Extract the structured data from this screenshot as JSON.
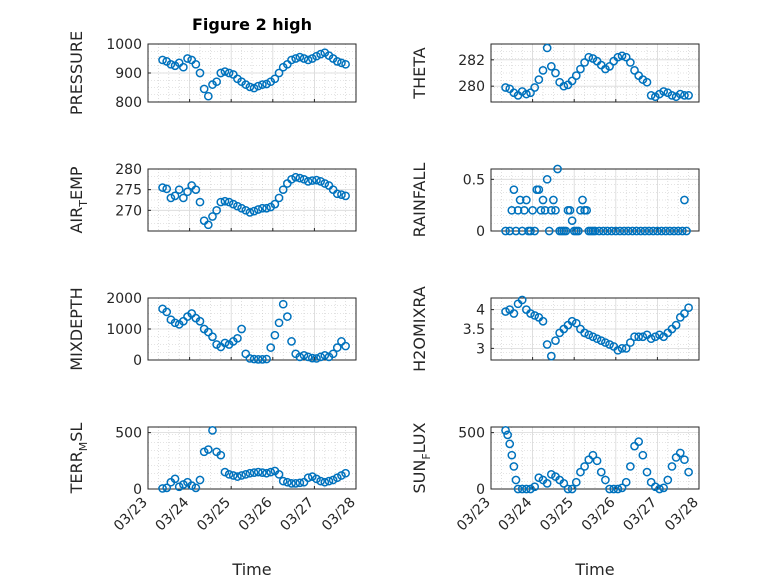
{
  "colors": {
    "marker": "#0072bd",
    "axis": "#262626",
    "grid": "#c8c8c8",
    "background": "#ffffff"
  },
  "figure_title": "Figure 2 high",
  "x_axis": {
    "label": "Time",
    "ticks": [
      "03/23",
      "03/24",
      "03/25",
      "03/26",
      "03/27",
      "03/28"
    ],
    "range_days": [
      0,
      5
    ],
    "start": "03/23"
  },
  "panels": [
    {
      "id": "pressure",
      "ylabel": "PRESSURE",
      "ylim": [
        800,
        1000
      ],
      "yticks": [
        800,
        900,
        1000
      ],
      "title": "Figure 2 high"
    },
    {
      "id": "theta",
      "ylabel": "THETA",
      "ylim": [
        278.8,
        283.2
      ],
      "yticks": [
        280,
        282
      ]
    },
    {
      "id": "airtemp",
      "ylabel_parts": [
        "AIR",
        "T",
        "EMP"
      ],
      "ylim": [
        265,
        280
      ],
      "yticks": [
        270,
        275,
        280
      ]
    },
    {
      "id": "rainfall",
      "ylabel": "RAINFALL",
      "ylim": [
        0,
        0.6
      ],
      "yticks": [
        0,
        0.5
      ]
    },
    {
      "id": "mixdepth",
      "ylabel": "MIXDEPTH",
      "ylim": [
        0,
        2000
      ],
      "yticks": [
        0,
        1000,
        2000
      ]
    },
    {
      "id": "h2omixra",
      "ylabel": "H2OMIXRA",
      "ylim": [
        2.7,
        4.3
      ],
      "yticks": [
        3,
        3.5,
        4
      ]
    },
    {
      "id": "terrmsl",
      "ylabel_parts": [
        "TERR",
        "M",
        "SL"
      ],
      "ylim": [
        0,
        550
      ],
      "yticks": [
        0,
        500
      ]
    },
    {
      "id": "sunflux",
      "ylabel_parts": [
        "SUN",
        "F",
        "LUX"
      ],
      "ylim": [
        0,
        550
      ],
      "yticks": [
        0,
        500
      ]
    }
  ],
  "chart_data": [
    {
      "type": "scatter",
      "title": "Figure 2 high",
      "xlabel": "",
      "ylabel": "PRESSURE",
      "ylim": [
        800,
        1000
      ],
      "grid": true,
      "x": [
        0.35,
        0.45,
        0.55,
        0.65,
        0.75,
        0.85,
        0.95,
        1.05,
        1.15,
        1.25,
        1.35,
        1.45,
        1.55,
        1.65,
        1.75,
        1.85,
        1.95,
        2.05,
        2.15,
        2.25,
        2.35,
        2.45,
        2.55,
        2.65,
        2.75,
        2.85,
        2.95,
        3.05,
        3.15,
        3.25,
        3.35,
        3.45,
        3.55,
        3.65,
        3.75,
        3.85,
        3.95,
        4.05,
        4.15,
        4.25,
        4.35,
        4.45,
        4.55,
        4.65,
        4.75
      ],
      "y": [
        945,
        940,
        930,
        925,
        935,
        920,
        950,
        945,
        930,
        900,
        845,
        820,
        860,
        870,
        900,
        905,
        900,
        895,
        880,
        870,
        860,
        852,
        848,
        855,
        860,
        862,
        870,
        880,
        900,
        920,
        930,
        945,
        950,
        955,
        950,
        945,
        950,
        958,
        965,
        970,
        960,
        950,
        940,
        935,
        930
      ]
    },
    {
      "type": "scatter",
      "xlabel": "",
      "ylabel": "THETA",
      "ylim": [
        278.8,
        283.2
      ],
      "grid": true,
      "x": [
        0.35,
        0.45,
        0.55,
        0.65,
        0.75,
        0.85,
        0.95,
        1.05,
        1.15,
        1.25,
        1.35,
        1.45,
        1.55,
        1.65,
        1.75,
        1.85,
        1.95,
        2.05,
        2.15,
        2.25,
        2.35,
        2.45,
        2.55,
        2.65,
        2.75,
        2.85,
        2.95,
        3.05,
        3.15,
        3.25,
        3.35,
        3.45,
        3.55,
        3.65,
        3.75,
        3.85,
        3.95,
        4.05,
        4.15,
        4.25,
        4.35,
        4.45,
        4.55,
        4.65,
        4.75
      ],
      "y": [
        279.9,
        279.8,
        279.5,
        279.3,
        279.6,
        279.4,
        279.5,
        279.9,
        280.5,
        281.2,
        282.9,
        281.5,
        281.0,
        280.3,
        280.0,
        280.1,
        280.4,
        280.8,
        281.3,
        281.8,
        282.2,
        282.1,
        281.9,
        281.6,
        281.3,
        281.5,
        281.9,
        282.2,
        282.3,
        282.2,
        281.8,
        281.2,
        280.8,
        280.5,
        280.3,
        279.3,
        279.2,
        279.4,
        279.6,
        279.5,
        279.3,
        279.2,
        279.4,
        279.3,
        279.3
      ]
    },
    {
      "type": "scatter",
      "xlabel": "",
      "ylabel": "AIR_TEMP",
      "ylim": [
        265,
        280
      ],
      "grid": true,
      "x": [
        0.35,
        0.45,
        0.55,
        0.65,
        0.75,
        0.85,
        0.95,
        1.05,
        1.15,
        1.25,
        1.35,
        1.45,
        1.55,
        1.65,
        1.75,
        1.85,
        1.95,
        2.05,
        2.15,
        2.25,
        2.35,
        2.45,
        2.55,
        2.65,
        2.75,
        2.85,
        2.95,
        3.05,
        3.15,
        3.25,
        3.35,
        3.45,
        3.55,
        3.65,
        3.75,
        3.85,
        3.95,
        4.05,
        4.15,
        4.25,
        4.35,
        4.45,
        4.55,
        4.65,
        4.75
      ],
      "y": [
        275.5,
        275.2,
        273,
        273.5,
        275,
        273,
        274.5,
        276,
        275,
        272,
        267.5,
        266.5,
        268.5,
        270,
        272,
        272.2,
        272,
        271.5,
        271,
        270.5,
        270,
        269.5,
        269.8,
        270.2,
        270.5,
        270.5,
        270.8,
        271.5,
        273,
        275,
        276.5,
        277.5,
        278,
        277.8,
        277.5,
        277,
        277.2,
        277.3,
        277,
        276.5,
        276,
        275,
        274,
        273.8,
        273.5
      ]
    },
    {
      "type": "scatter",
      "xlabel": "",
      "ylabel": "RAINFALL",
      "ylim": [
        0,
        0.6
      ],
      "grid": true,
      "x": [
        0.35,
        0.45,
        0.5,
        0.55,
        0.6,
        0.65,
        0.7,
        0.75,
        0.8,
        0.85,
        0.9,
        0.95,
        1.0,
        1.05,
        1.1,
        1.15,
        1.2,
        1.25,
        1.3,
        1.35,
        1.4,
        1.45,
        1.5,
        1.55,
        1.6,
        1.65,
        1.7,
        1.75,
        1.8,
        1.85,
        1.9,
        1.95,
        2.0,
        2.05,
        2.1,
        2.15,
        2.2,
        2.25,
        2.3,
        2.35,
        2.4,
        2.45,
        2.5,
        2.6,
        2.7,
        2.8,
        2.9,
        3.0,
        3.1,
        3.2,
        3.3,
        3.4,
        3.5,
        3.6,
        3.7,
        3.8,
        3.9,
        4.0,
        4.1,
        4.2,
        4.3,
        4.4,
        4.5,
        4.6,
        4.65,
        4.7
      ],
      "y": [
        0,
        0,
        0.2,
        0.4,
        0,
        0.2,
        0.3,
        0,
        0.2,
        0.3,
        0,
        0,
        0.2,
        0,
        0.4,
        0.4,
        0.2,
        0.3,
        0.2,
        0.5,
        0,
        0.2,
        0.3,
        0.2,
        0.6,
        0,
        0,
        0,
        0,
        0.2,
        0.2,
        0.1,
        0,
        0,
        0,
        0.2,
        0.3,
        0.2,
        0.2,
        0,
        0,
        0,
        0,
        0,
        0,
        0,
        0,
        0,
        0,
        0,
        0,
        0,
        0,
        0,
        0,
        0,
        0,
        0,
        0,
        0,
        0,
        0,
        0,
        0,
        0.3,
        0
      ]
    },
    {
      "type": "scatter",
      "xlabel": "",
      "ylabel": "MIXDEPTH",
      "ylim": [
        0,
        2000
      ],
      "grid": true,
      "x": [
        0.35,
        0.45,
        0.55,
        0.65,
        0.75,
        0.85,
        0.95,
        1.05,
        1.15,
        1.25,
        1.35,
        1.45,
        1.55,
        1.65,
        1.75,
        1.85,
        1.95,
        2.05,
        2.15,
        2.25,
        2.35,
        2.45,
        2.55,
        2.65,
        2.75,
        2.85,
        2.95,
        3.05,
        3.15,
        3.25,
        3.35,
        3.45,
        3.55,
        3.65,
        3.75,
        3.85,
        3.95,
        4.05,
        4.15,
        4.25,
        4.35,
        4.45,
        4.55,
        4.65,
        4.75
      ],
      "y": [
        1650,
        1550,
        1300,
        1200,
        1150,
        1250,
        1400,
        1500,
        1350,
        1250,
        1000,
        900,
        750,
        500,
        420,
        550,
        500,
        600,
        700,
        1000,
        200,
        50,
        30,
        20,
        20,
        30,
        400,
        800,
        1200,
        1800,
        1400,
        600,
        200,
        100,
        150,
        100,
        60,
        50,
        100,
        150,
        100,
        200,
        400,
        600,
        450
      ]
    },
    {
      "type": "scatter",
      "xlabel": "",
      "ylabel": "H2OMIXRA",
      "ylim": [
        2.7,
        4.3
      ],
      "grid": true,
      "x": [
        0.35,
        0.45,
        0.55,
        0.65,
        0.75,
        0.85,
        0.95,
        1.05,
        1.15,
        1.25,
        1.35,
        1.45,
        1.55,
        1.65,
        1.75,
        1.85,
        1.95,
        2.05,
        2.15,
        2.25,
        2.35,
        2.45,
        2.55,
        2.65,
        2.75,
        2.85,
        2.95,
        3.05,
        3.15,
        3.25,
        3.35,
        3.45,
        3.55,
        3.65,
        3.75,
        3.85,
        3.95,
        4.05,
        4.15,
        4.25,
        4.35,
        4.45,
        4.55,
        4.65,
        4.75
      ],
      "y": [
        3.95,
        4.0,
        3.9,
        4.15,
        4.25,
        4.0,
        3.9,
        3.85,
        3.8,
        3.7,
        3.1,
        2.8,
        3.2,
        3.4,
        3.5,
        3.6,
        3.7,
        3.65,
        3.5,
        3.4,
        3.35,
        3.3,
        3.25,
        3.2,
        3.15,
        3.1,
        3.05,
        2.95,
        3.0,
        3.0,
        3.15,
        3.3,
        3.3,
        3.3,
        3.35,
        3.25,
        3.3,
        3.35,
        3.3,
        3.4,
        3.5,
        3.6,
        3.8,
        3.9,
        4.05
      ]
    },
    {
      "type": "scatter",
      "xlabel": "Time",
      "ylabel": "TERR_MSL",
      "ylim": [
        0,
        550
      ],
      "grid": true,
      "x": [
        0.35,
        0.45,
        0.55,
        0.65,
        0.75,
        0.85,
        0.95,
        1.05,
        1.15,
        1.25,
        1.35,
        1.45,
        1.55,
        1.65,
        1.75,
        1.85,
        1.95,
        2.05,
        2.15,
        2.25,
        2.35,
        2.45,
        2.55,
        2.65,
        2.75,
        2.85,
        2.95,
        3.05,
        3.15,
        3.25,
        3.35,
        3.45,
        3.55,
        3.65,
        3.75,
        3.85,
        3.95,
        4.05,
        4.15,
        4.25,
        4.35,
        4.45,
        4.55,
        4.65,
        4.75
      ],
      "y": [
        5,
        10,
        60,
        90,
        20,
        40,
        60,
        30,
        10,
        80,
        330,
        350,
        520,
        330,
        300,
        150,
        130,
        120,
        110,
        120,
        130,
        140,
        145,
        150,
        145,
        140,
        150,
        160,
        130,
        70,
        60,
        50,
        50,
        55,
        60,
        100,
        110,
        90,
        70,
        60,
        70,
        80,
        100,
        120,
        140
      ]
    },
    {
      "type": "scatter",
      "xlabel": "Time",
      "ylabel": "SUN_FLUX",
      "ylim": [
        0,
        550
      ],
      "grid": true,
      "x": [
        0.35,
        0.4,
        0.45,
        0.5,
        0.55,
        0.6,
        0.65,
        0.75,
        0.85,
        0.95,
        1.05,
        1.15,
        1.25,
        1.35,
        1.45,
        1.55,
        1.65,
        1.75,
        1.85,
        1.95,
        2.05,
        2.15,
        2.25,
        2.35,
        2.45,
        2.55,
        2.65,
        2.75,
        2.85,
        2.95,
        3.05,
        3.15,
        3.25,
        3.35,
        3.45,
        3.55,
        3.65,
        3.75,
        3.85,
        3.95,
        4.05,
        4.15,
        4.25,
        4.35,
        4.45,
        4.55,
        4.65,
        4.75
      ],
      "y": [
        520,
        480,
        400,
        300,
        200,
        80,
        0,
        0,
        0,
        0,
        20,
        100,
        80,
        50,
        130,
        110,
        80,
        50,
        0,
        0,
        60,
        150,
        200,
        260,
        300,
        250,
        150,
        80,
        0,
        0,
        0,
        10,
        60,
        200,
        380,
        420,
        300,
        150,
        60,
        20,
        0,
        10,
        80,
        200,
        280,
        320,
        260,
        150
      ]
    }
  ]
}
